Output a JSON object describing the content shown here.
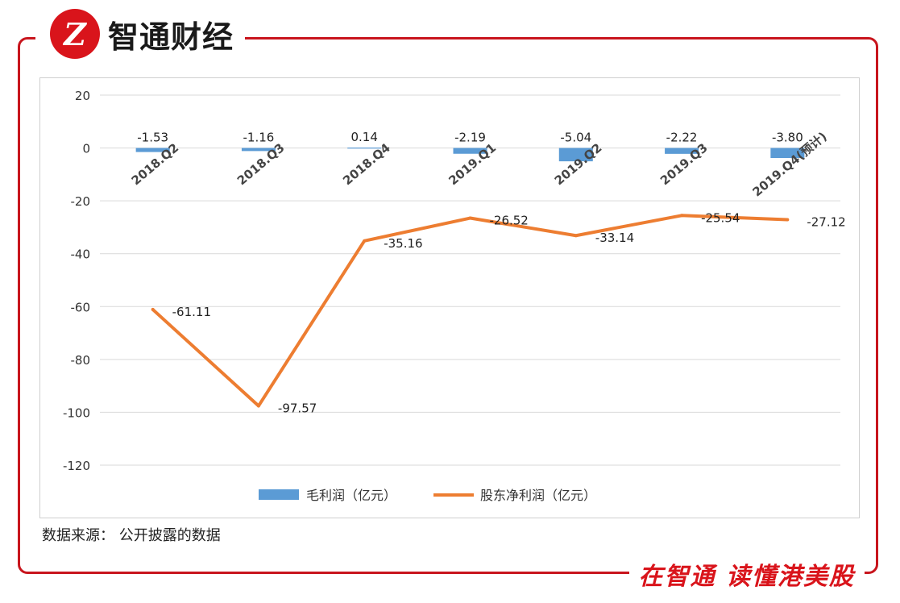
{
  "brand": {
    "logo_mark": "Z",
    "name": "智通财经",
    "slogan": "在智通 读懂港美股"
  },
  "source": "数据来源：  公开披露的数据",
  "colors": {
    "frame": "#c8151d",
    "bar": "#5b9bd5",
    "line": "#ed7d31",
    "grid": "#d9d9d9"
  },
  "chart_data": {
    "type": "bar",
    "categories": [
      "2018.Q2",
      "2018.Q3",
      "2018.Q4",
      "2019.Q1",
      "2019.Q2",
      "2019.Q3",
      "2019.Q4(预计)"
    ],
    "ylim": [
      -120,
      20
    ],
    "yticks": [
      "20",
      "0",
      "-20",
      "-40",
      "-60",
      "-80",
      "-100",
      "-120"
    ],
    "series": [
      {
        "name": "毛利润（亿元）",
        "type": "bar",
        "values": [
          -1.53,
          -1.16,
          0.14,
          -2.19,
          -5.04,
          -2.22,
          -3.8
        ],
        "labels": [
          "-1.53",
          "-1.16",
          "0.14",
          "-2.19",
          "-5.04",
          "-2.22",
          "-3.80"
        ]
      },
      {
        "name": "股东净利润（亿元）",
        "type": "line",
        "values": [
          -61.11,
          -97.57,
          -35.16,
          -26.52,
          -33.14,
          -25.54,
          -27.12
        ],
        "labels": [
          "-61.11",
          "-97.57",
          "-35.16",
          "-26.52",
          "-33.14",
          "-25.54",
          "-27.12"
        ]
      }
    ],
    "legend_position": "bottom",
    "grid": true
  }
}
